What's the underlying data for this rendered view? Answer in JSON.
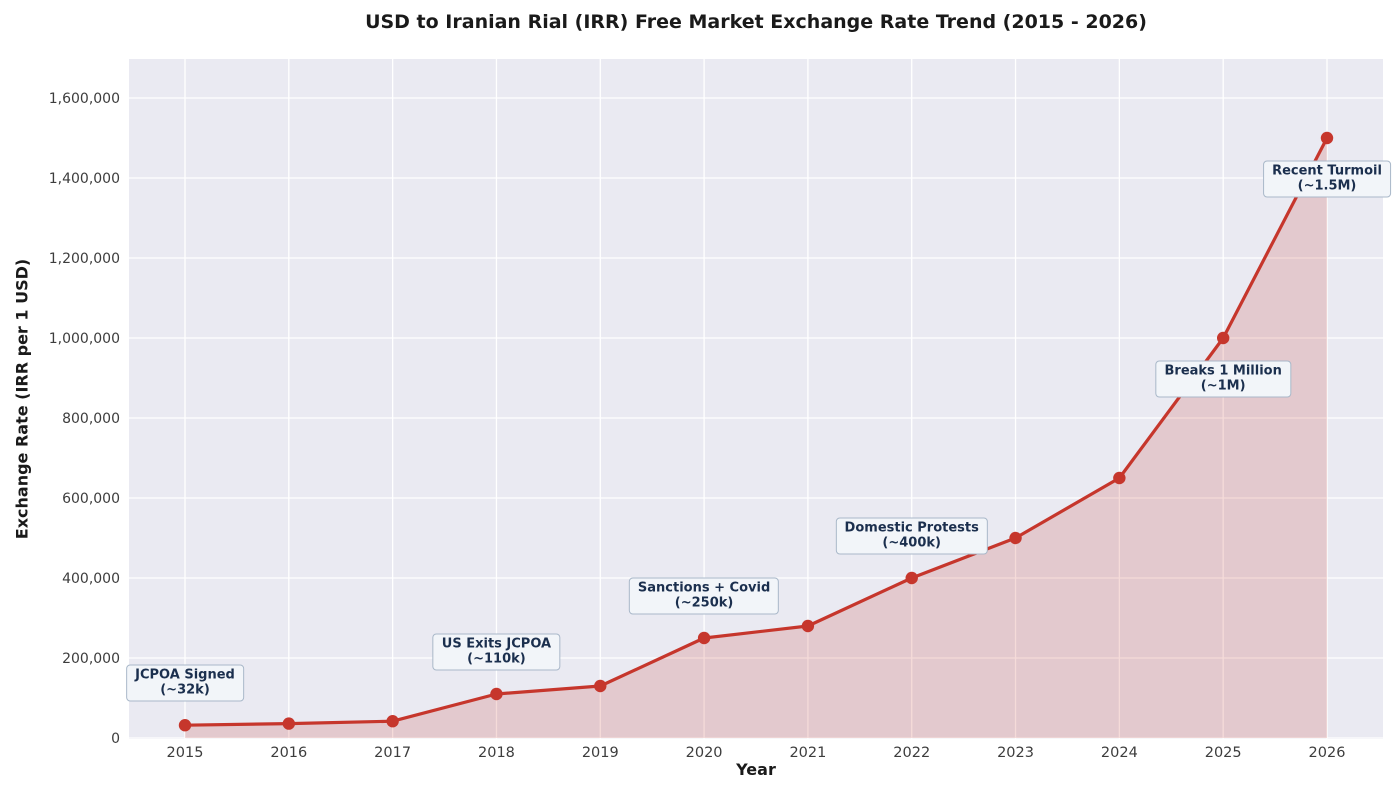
{
  "chart_data": {
    "type": "line",
    "title": "USD to Iranian Rial (IRR) Free Market Exchange Rate Trend (2015 - 2026)",
    "xlabel": "Year",
    "ylabel": "Exchange Rate (IRR per 1 USD)",
    "x": [
      2015,
      2016,
      2017,
      2018,
      2019,
      2020,
      2021,
      2022,
      2023,
      2024,
      2025,
      2026
    ],
    "xtick_labels": [
      "2015",
      "2016",
      "2017",
      "2018",
      "2019",
      "2020",
      "2021",
      "2022",
      "2023",
      "2024",
      "2025",
      "2026"
    ],
    "series": [
      {
        "name": "USD to IRR free market exchange rate",
        "values": [
          32000,
          36000,
          42000,
          110000,
          130000,
          250000,
          280000,
          400000,
          500000,
          650000,
          1000000,
          1500000
        ]
      }
    ],
    "ylim": [
      0,
      1700000
    ],
    "yticks": [
      0,
      200000,
      400000,
      600000,
      800000,
      1000000,
      1200000,
      1400000,
      1600000
    ],
    "ytick_labels": [
      "0",
      "200,000",
      "400,000",
      "600,000",
      "800,000",
      "1,000,000",
      "1,200,000",
      "1,400,000",
      "1,600,000"
    ],
    "grid": true,
    "legend": false,
    "area_fill": true,
    "annotations": [
      {
        "line1": "JCPOA Signed",
        "line2": "(~32k)",
        "year": 2015,
        "value": 32000,
        "placement": "above"
      },
      {
        "line1": "US Exits JCPOA",
        "line2": "(~110k)",
        "year": 2018,
        "value": 110000,
        "placement": "above"
      },
      {
        "line1": "Sanctions + Covid",
        "line2": "(~250k)",
        "year": 2020,
        "value": 250000,
        "placement": "above"
      },
      {
        "line1": "Domestic Protests",
        "line2": "(~400k)",
        "year": 2022,
        "value": 400000,
        "placement": "above"
      },
      {
        "line1": "Breaks 1 Million",
        "line2": "(~1M)",
        "year": 2025,
        "value": 1000000,
        "placement": "below"
      },
      {
        "line1": "Recent Turmoil",
        "line2": "(~1.5M)",
        "year": 2026,
        "value": 1500000,
        "placement": "below"
      }
    ],
    "colors": {
      "line": "#c6362c",
      "marker": "#c6362c",
      "area": "#c6362c",
      "plot_background": "#eaeaf2",
      "grid": "#ffffff",
      "tick_label": "#3d3d3d",
      "title": "#1a1a1a",
      "annotation_text": "#1b2f4e",
      "annotation_background": "#f2f5f9",
      "annotation_border": "#a9b8c9"
    }
  }
}
